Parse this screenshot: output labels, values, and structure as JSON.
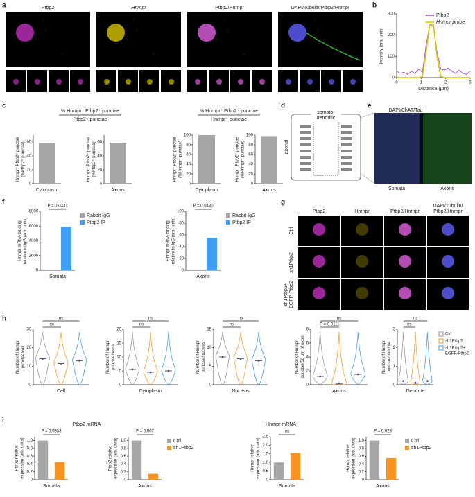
{
  "figure": {
    "a": {
      "letter": "a",
      "channels": [
        "Ptbp2",
        "Hnrnpr",
        "Ptbp2/Hnrnpr",
        "DAPI/Tubulin/Ptbp2/Hnrnpr"
      ],
      "arrows": [
        "1",
        "2",
        "3",
        "4"
      ],
      "insets": [
        "1",
        "2",
        "3",
        "4"
      ]
    },
    "b": {
      "letter": "b",
      "type": "line",
      "xlabel": "Distance (µm)",
      "ylabel": "Intensity (arb. units)",
      "xlim": [
        0,
        3
      ],
      "xticks": [
        0,
        1,
        2,
        3
      ],
      "ylim": [
        0,
        300
      ],
      "yticks": [
        0,
        100,
        200,
        300
      ],
      "x": [
        0,
        0.15,
        0.3,
        0.45,
        0.6,
        0.75,
        0.9,
        1.05,
        1.2,
        1.35,
        1.5,
        1.65,
        1.8,
        1.95,
        2.1,
        2.25,
        2.4,
        2.55,
        2.7,
        2.85,
        3
      ],
      "series": [
        {
          "name": "Ptbp2",
          "color": "#b040d0",
          "values": [
            30,
            20,
            25,
            15,
            30,
            20,
            40,
            25,
            150,
            250,
            240,
            120,
            40,
            35,
            45,
            30,
            20,
            35,
            20,
            15,
            30
          ]
        },
        {
          "name": "Hnrnpr probe",
          "color": "#d8c400",
          "values": [
            0,
            0,
            0,
            0,
            0,
            0,
            0,
            5,
            120,
            250,
            250,
            100,
            5,
            0,
            0,
            0,
            0,
            0,
            0,
            0,
            0
          ]
        }
      ]
    },
    "c": {
      "letter": "c",
      "headers": [
        {
          "numerator": "% Hnrnpr⁺ Ptbp2⁺ punctae",
          "denominator": "Ptbp2⁺ punctae"
        },
        {
          "numerator": "% Hnrnpr⁺ Ptbp2⁺ punctae",
          "denominator": "Hnrnpr⁺ punctae"
        }
      ],
      "charts": [
        {
          "ylabel": [
            "Hnrnpr⁺ Ptbp2⁺ punctae",
            "(%Ptbp2⁺ punctae)"
          ],
          "ylim": [
            0,
            70
          ],
          "yticks": [
            0,
            20,
            40,
            60
          ],
          "xlabel": "Cytoplasm",
          "bars": [
            {
              "color": "#a6a6a6",
              "value": 59
            }
          ]
        },
        {
          "ylabel": [
            "Hnrnpr⁺ Ptbp2⁺ punctae",
            "(%Ptbp2⁺ punctae)"
          ],
          "ylim": [
            0,
            70
          ],
          "yticks": [
            0,
            20,
            40,
            60
          ],
          "xlabel": "Axons",
          "bars": [
            {
              "color": "#a6a6a6",
              "value": 59
            }
          ]
        },
        {
          "ylabel": [
            "Hnrnpr⁺ Ptbp2⁺ punctae",
            "(%Hnrnpr⁺ punctae)"
          ],
          "ylim": [
            0,
            100
          ],
          "yticks": [
            0,
            20,
            40,
            60,
            80,
            100
          ],
          "xlabel": "Cytoplasm",
          "bars": [
            {
              "color": "#a6a6a6",
              "value": 100
            }
          ]
        },
        {
          "ylabel": [
            "Hnrnpr⁺ Ptbp2⁺ punctae",
            "(%Hnrnpr⁺ punctae)"
          ],
          "ylim": [
            0,
            100
          ],
          "yticks": [
            0,
            20,
            40,
            60,
            80,
            100
          ],
          "xlabel": "Axons",
          "bars": [
            {
              "color": "#a6a6a6",
              "value": 98
            }
          ]
        }
      ]
    },
    "d": {
      "letter": "d",
      "top": "somato-",
      "top2": "dendritic",
      "side": "axonal"
    },
    "e": {
      "letter": "e",
      "title": "DAPI/ChAT/Tau",
      "left": "Somata",
      "right": "Axons"
    },
    "f": {
      "letter": "f",
      "charts": [
        {
          "ylabel": [
            "Hnrnpr mRNA binding",
            "relative to IgG (arb. units)"
          ],
          "ylim": [
            0,
            8000
          ],
          "yticks": [
            0,
            2000,
            4000,
            6000,
            8000
          ],
          "xlabel": "Somata",
          "p": "P = 0.0331",
          "bars": [
            {
              "name": "Rabbit IgG",
              "color": "#a6a6a6",
              "value": 1
            },
            {
              "name": "Ptbp2 IP",
              "color": "#3fa0f5",
              "value": 5900
            }
          ]
        },
        {
          "ylabel": [
            "Hnrnpr mRNA binding",
            "relative to IgG (arb. units)"
          ],
          "ylim": [
            0,
            100
          ],
          "yticks": [
            0,
            20,
            40,
            60,
            80,
            100
          ],
          "xlabel": "Axons",
          "p": "P = 0.0430",
          "bars": [
            {
              "name": "Rabbit IgG",
              "color": "#a6a6a6",
              "value": 1
            },
            {
              "name": "Ptbp2 IP",
              "color": "#3fa0f5",
              "value": 55
            }
          ]
        }
      ]
    },
    "g": {
      "letter": "g",
      "columns": [
        [
          "Ptbp2"
        ],
        [
          "Hnrnpr"
        ],
        [
          "Ptbp2/Hnrnpr"
        ],
        [
          "DAPI/Tubulin/",
          "Ptbp2/Hnrnpr"
        ]
      ],
      "rows": [
        [
          "Ctrl"
        ],
        [
          "sh1Ptbp2"
        ],
        [
          "sh1Ptbp2+",
          "EGFP-Ptbp2"
        ]
      ]
    },
    "h": {
      "letter": "h",
      "legend": [
        {
          "name": "Ctrl",
          "color": "#999999"
        },
        {
          "name": "sh1Ptbp2",
          "color": "#f7a030"
        },
        {
          "name": "sh1Ptbp2+",
          "color": "#4a9fe0"
        }
      ],
      "legend_extra": "EGFP-Ptbp2",
      "charts": [
        {
          "ylabel": [
            "Number of Hnrnpr",
            "punctae/cell"
          ],
          "ylim": [
            0,
            30
          ],
          "yticks": [
            0,
            10,
            20,
            30
          ],
          "xlabel": "Cell",
          "sig": [
            "ns",
            "ns"
          ],
          "medians": [
            14,
            11.5,
            13
          ]
        },
        {
          "ylabel": [
            "Number of Hnrnpr",
            "punctae/soma"
          ],
          "ylim": [
            0,
            20
          ],
          "yticks": [
            0,
            5,
            10,
            15,
            20
          ],
          "xlabel": "Cytoplasm",
          "sig": [
            "ns",
            "ns"
          ],
          "medians": [
            5.5,
            4.5,
            5
          ]
        },
        {
          "ylabel": [
            "Number of Hnrnpr",
            "punctae/nucleus"
          ],
          "ylim": [
            0,
            15
          ],
          "yticks": [
            0,
            5,
            10,
            15
          ],
          "xlabel": "Nucleus",
          "sig": [
            "ns",
            "ns"
          ],
          "medians": [
            7.5,
            7,
            6.5
          ]
        },
        {
          "ylabel": [
            "Number of Hnrnpr",
            "punctae/50 µm of axon"
          ],
          "ylim": [
            0,
            8
          ],
          "yticks": [
            0,
            2,
            4,
            6,
            8
          ],
          "xlabel": "Axons",
          "sig": [
            "P = 0.0111",
            "ns"
          ],
          "medians": [
            1.2,
            0.2,
            1.5
          ]
        },
        {
          "ylabel": [
            "Number of Hnrnpr",
            "punctae/dendrite"
          ],
          "ylim": [
            0,
            3
          ],
          "yticks": [
            0,
            1,
            2,
            3
          ],
          "xlabel": "Dendrite",
          "sig": [
            "ns",
            "ns"
          ],
          "medians": [
            0.2,
            0.1,
            0.2
          ]
        }
      ]
    },
    "i": {
      "letter": "i",
      "headers": [
        "Ptbp2 mRNA",
        "Hnrnpr mRNA"
      ],
      "charts": [
        {
          "ylabel": [
            "Ptbp2 relative",
            "expression (arb. units)"
          ],
          "ylim": [
            0,
            1.1
          ],
          "yticks": [
            0,
            0.2,
            0.4,
            0.6,
            0.8,
            {
              "value": 1,
              "label": "1.0"
            }
          ],
          "xlabel": "Somata",
          "p": "P = 0.0353",
          "bars": [
            {
              "color": "#a6a6a6",
              "value": 1
            },
            {
              "color": "#f7931e",
              "value": 0.45
            }
          ]
        },
        {
          "ylabel": [
            "Ptbp2 relative",
            "expression (arb. units)"
          ],
          "ylim": [
            0,
            1.1
          ],
          "yticks": [
            0,
            0.2,
            0.4,
            0.6,
            0.8,
            {
              "value": 1,
              "label": "1.0"
            }
          ],
          "xlabel": "Axons",
          "p": "P = 0.007",
          "bars": [
            {
              "name": "Ctrl",
              "color": "#a6a6a6",
              "value": 1
            },
            {
              "name": "sh1Ptbp2",
              "color": "#f7931e",
              "value": 0.15
            }
          ]
        },
        {
          "ylabel": [
            "Hnrnpr relative",
            "expression (arb. units)"
          ],
          "ylim": [
            0,
            2.5
          ],
          "yticks": [
            0,
            0.5,
            {
              "value": 1,
              "label": "1.0"
            },
            1.5,
            {
              "value": 2,
              "label": "2.0"
            },
            2.5
          ],
          "xlabel": "Somata",
          "p": "ns",
          "bars": [
            {
              "color": "#a6a6a6",
              "value": 1
            },
            {
              "color": "#f7931e",
              "value": 1.55
            }
          ]
        },
        {
          "ylabel": [
            "Hnrnpr relative",
            "expression (arb. units)"
          ],
          "ylim": [
            0,
            1.1
          ],
          "yticks": [
            0,
            0.2,
            0.4,
            0.6,
            0.8,
            {
              "value": 1,
              "label": "1.0"
            }
          ],
          "xlabel": "Axons",
          "p": "P = 0.028",
          "bars": [
            {
              "name": "Ctrl",
              "color": "#a6a6a6",
              "value": 1
            },
            {
              "name": "sh1Ptbp2",
              "color": "#f7931e",
              "value": 0.55
            }
          ]
        }
      ]
    }
  }
}
